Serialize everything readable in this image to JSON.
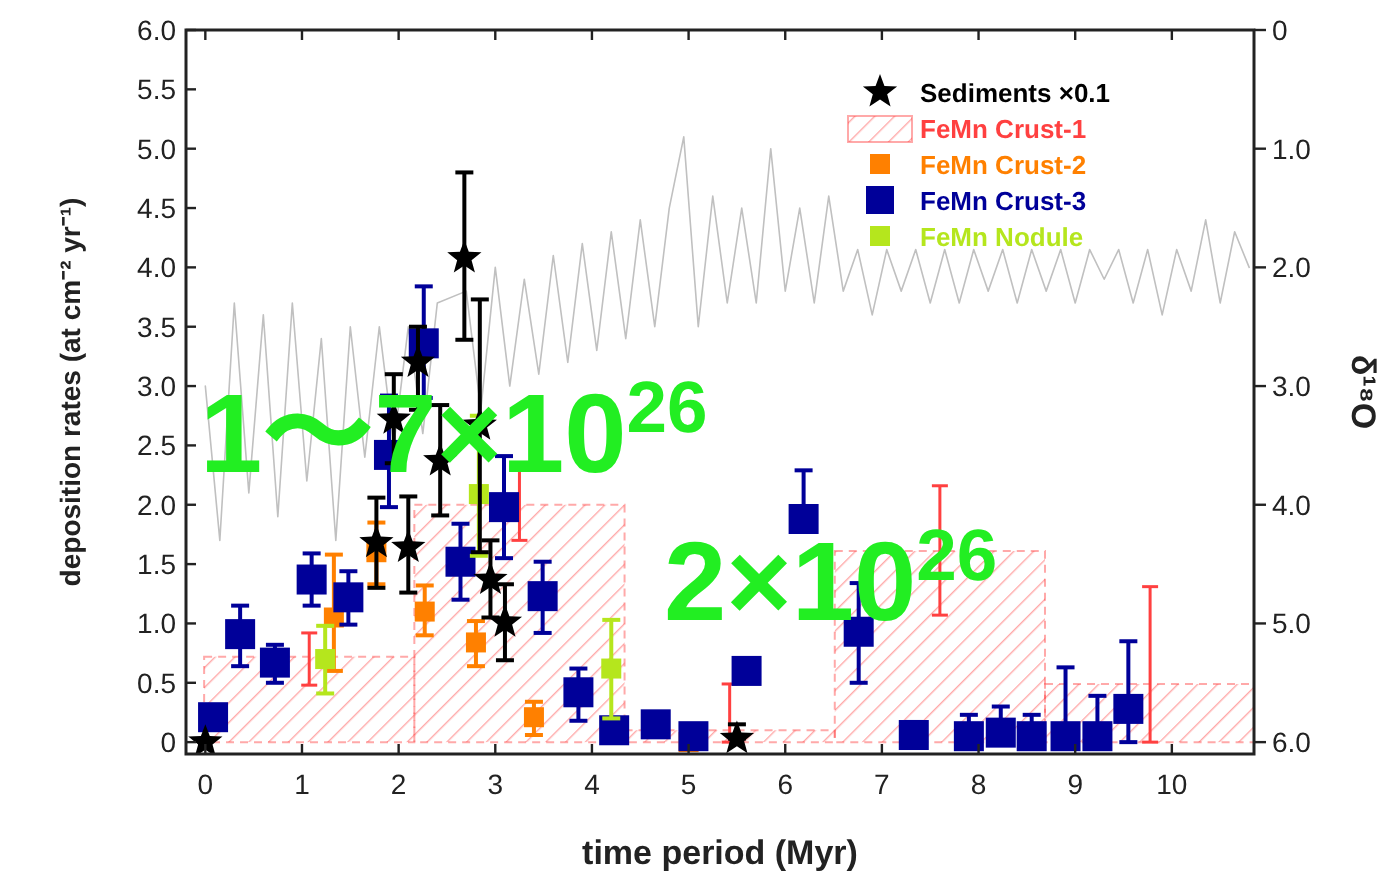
{
  "chart_data": {
    "type": "scatter",
    "xlabel": "time period (Myr)",
    "ylabel": "deposition rates (at cm⁻² yr⁻¹)",
    "y2label": "δ¹⁸O",
    "xlim": [
      -0.2,
      10.85
    ],
    "xticks": [
      0,
      1,
      2,
      3,
      4,
      5,
      6,
      7,
      8,
      9,
      10
    ],
    "ylim": [
      -0.1,
      6.0
    ],
    "yticks": [
      0,
      0.5,
      {
        "value": 1,
        "label": "1.0"
      },
      1.5,
      {
        "value": 2,
        "label": "2.0"
      },
      2.5,
      {
        "value": 3,
        "label": "3.0"
      },
      3.5,
      {
        "value": 4,
        "label": "4.0"
      },
      4.5,
      {
        "value": 5,
        "label": "5.0"
      },
      5.5,
      {
        "value": 6,
        "label": "6.0"
      }
    ],
    "y2lim": [
      6.1,
      0
    ],
    "y2ticks": [
      0,
      {
        "value": 1,
        "label": "1.0"
      },
      {
        "value": 2,
        "label": "2.0"
      },
      {
        "value": 3,
        "label": "3.0"
      },
      {
        "value": 4,
        "label": "4.0"
      },
      {
        "value": 5,
        "label": "5.0"
      },
      {
        "value": 6,
        "label": "6.0"
      }
    ],
    "grid": false,
    "legend": "top right",
    "annotations": [
      "1〜7×10$^{26}$",
      "2×10$^{26}$"
    ],
    "series": [
      {
        "type": "line",
        "axis": "y2",
        "color": "#c0c0c0",
        "x": [
          0,
          0.15,
          0.3,
          0.45,
          0.6,
          0.75,
          0.9,
          1.05,
          1.2,
          1.35,
          1.5,
          1.65,
          1.8,
          1.95,
          2.1,
          2.25,
          2.4,
          2.7,
          2.85,
          3.0,
          3.15,
          3.3,
          3.45,
          3.6,
          3.75,
          3.9,
          4.05,
          4.2,
          4.35,
          4.5,
          4.65,
          4.8,
          4.95,
          5.1,
          5.25,
          5.4,
          5.55,
          5.7,
          5.85,
          6.0,
          6.15,
          6.3,
          6.45,
          6.6,
          6.75,
          6.9,
          7.05,
          7.2,
          7.35,
          7.5,
          7.65,
          7.8,
          7.95,
          8.1,
          8.25,
          8.4,
          8.55,
          8.7,
          8.85,
          9.0,
          9.15,
          9.3,
          9.45,
          9.6,
          9.75,
          9.9,
          10.05,
          10.2,
          10.35,
          10.5,
          10.65,
          10.8
        ],
        "values": [
          3.0,
          4.3,
          2.3,
          3.9,
          2.4,
          4.1,
          2.3,
          3.8,
          2.6,
          4.3,
          2.5,
          3.6,
          2.5,
          3.5,
          2.5,
          3.4,
          2.3,
          2.2,
          3.2,
          2.0,
          3.0,
          2.1,
          2.9,
          1.9,
          2.8,
          1.8,
          2.7,
          1.7,
          2.6,
          1.6,
          2.5,
          1.5,
          0.9,
          2.5,
          1.4,
          2.3,
          1.5,
          2.3,
          1.0,
          2.2,
          1.5,
          2.3,
          1.4,
          2.2,
          1.85,
          2.4,
          1.85,
          2.2,
          1.85,
          2.3,
          1.85,
          2.3,
          1.85,
          2.2,
          1.85,
          2.3,
          1.85,
          2.2,
          1.85,
          2.3,
          1.85,
          2.1,
          1.85,
          2.3,
          1.85,
          2.4,
          1.85,
          2.2,
          1.6,
          2.3,
          1.7,
          2.0
        ]
      },
      {
        "type": "bar",
        "name": "FeMn Crust-1",
        "color": "#ff4040",
        "x": [
          1.075,
          3.25,
          5.425,
          7.6,
          9.775
        ],
        "values": [
          0.72,
          2.0,
          0.1,
          1.61,
          0.49
        ],
        "errors": [
          [
            0.48,
            0.92
          ],
          [
            1.7,
            2.3
          ],
          [
            0,
            0.49
          ],
          [
            1.07,
            2.16
          ],
          [
            0,
            1.31
          ]
        ]
      },
      {
        "name": "FeMn Crust-2",
        "color": "#ff8000",
        "marker": "square",
        "x": [
          1.33,
          1.77,
          2.27,
          2.8,
          3.4,
          5.0
        ],
        "values": [
          1.05,
          1.6,
          1.1,
          0.84,
          0.21,
          0
        ],
        "errors": [
          [
            0.6,
            1.58
          ],
          [
            1.33,
            1.85
          ],
          [
            0.9,
            1.32
          ],
          [
            0.64,
            1.02
          ],
          [
            0.06,
            0.34
          ],
          null
        ]
      },
      {
        "name": "FeMn Crust-3",
        "color": "#000099",
        "marker": "square",
        "x": [
          0.08,
          0.36,
          0.72,
          1.1,
          1.48,
          1.9,
          2.26,
          2.64,
          3.09,
          3.49,
          3.86,
          4.23,
          4.66,
          5.05,
          5.6,
          6.19,
          6.76,
          7.33,
          7.9,
          8.23,
          8.55,
          8.9,
          9.23,
          9.55
        ],
        "values": [
          0.21,
          0.91,
          0.67,
          1.37,
          1.22,
          2.42,
          3.36,
          1.52,
          1.98,
          1.23,
          0.42,
          0.1,
          0.15,
          0.05,
          0.6,
          1.88,
          0.93,
          0.06,
          0.05,
          0.08,
          0.05,
          0.05,
          0.05,
          0.28
        ],
        "errors": [
          null,
          [
            0.64,
            1.15
          ],
          [
            0.5,
            0.82
          ],
          [
            1.15,
            1.59
          ],
          [
            0.99,
            1.44
          ],
          [
            1.98,
            2.92
          ],
          [
            2.9,
            3.84
          ],
          [
            1.2,
            1.84
          ],
          [
            1.55,
            2.41
          ],
          [
            0.92,
            1.52
          ],
          [
            0.18,
            0.62
          ],
          null,
          [
            0.05,
            0.25
          ],
          null,
          [
            0.6,
            0.68
          ],
          [
            1.88,
            2.29
          ],
          [
            0.5,
            1.34
          ],
          [
            0.06,
            0.17
          ],
          [
            0.05,
            0.23
          ],
          [
            0.08,
            0.3
          ],
          [
            0.05,
            0.23
          ],
          [
            0.05,
            0.63
          ],
          [
            0.05,
            0.39
          ],
          [
            0.0,
            0.85
          ]
        ]
      },
      {
        "name": "FeMn Nodule",
        "color": "#b5e61d",
        "marker": "square",
        "x": [
          1.24,
          2.83,
          4.2
        ],
        "values": [
          0.7,
          2.09,
          0.62
        ],
        "errors": [
          [
            0.41,
            0.98
          ],
          [
            1.57,
            2.75
          ],
          [
            0.2,
            1.03
          ]
        ]
      },
      {
        "name": "Sediments  ×0.1",
        "color": "#000000",
        "marker": "star",
        "x": [
          0,
          1.77,
          1.95,
          2.1,
          2.2,
          2.43,
          2.68,
          2.84,
          2.95,
          3.1,
          5.5
        ],
        "values": [
          0,
          1.68,
          2.72,
          1.64,
          3.2,
          2.37,
          4.08,
          2.67,
          1.37,
          1.01,
          0.03
        ],
        "errors": [
          null,
          [
            1.3,
            2.06
          ],
          [
            2.35,
            3.1
          ],
          [
            1.26,
            2.07
          ],
          [
            2.8,
            3.5
          ],
          [
            1.91,
            2.84
          ],
          [
            3.39,
            4.8
          ],
          [
            1.6,
            3.73
          ],
          [
            1.05,
            1.7
          ],
          [
            0.69,
            1.33
          ],
          [
            0.03,
            0.15
          ]
        ]
      }
    ]
  }
}
